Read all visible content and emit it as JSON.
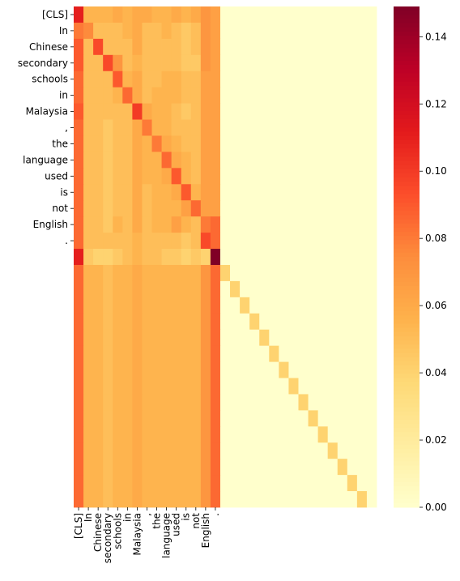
{
  "chart_data": {
    "type": "heatmap",
    "title": "",
    "xlabel": "",
    "ylabel": "",
    "x_tick_labels": [
      "[CLS]",
      "In",
      "Chinese",
      "secondary",
      "schools",
      "in",
      "Malaysia",
      ",",
      "the",
      "language",
      "used",
      "is",
      "not",
      "English",
      "."
    ],
    "y_tick_labels": [
      "[CLS]",
      "In",
      "Chinese",
      "secondary",
      "schools",
      "in",
      "Malaysia",
      ",",
      "the",
      "language",
      "used",
      "is",
      "not",
      "English",
      "."
    ],
    "n_rows": 31,
    "n_cols": 31,
    "colormap": "YlOrRd",
    "colorbar": {
      "min": 0.0,
      "max": 0.149,
      "ticks": [
        0.0,
        0.02,
        0.04,
        0.06,
        0.08,
        0.1,
        0.12,
        0.14
      ],
      "tick_labels": [
        "0.00",
        "0.02",
        "0.04",
        "0.06",
        "0.08",
        "0.10",
        "0.12",
        "0.14"
      ]
    },
    "values": [
      [
        0.11,
        0.055,
        0.055,
        0.055,
        0.06,
        0.055,
        0.06,
        0.06,
        0.055,
        0.055,
        0.06,
        0.055,
        0.06,
        0.07,
        0.065,
        0.0,
        0.0,
        0.0,
        0.0,
        0.0,
        0.0,
        0.0,
        0.0,
        0.0,
        0.0,
        0.0,
        0.0,
        0.0,
        0.0,
        0.0,
        0.0
      ],
      [
        0.08,
        0.075,
        0.05,
        0.05,
        0.05,
        0.055,
        0.06,
        0.05,
        0.05,
        0.055,
        0.05,
        0.045,
        0.05,
        0.07,
        0.065,
        0.0,
        0.0,
        0.0,
        0.0,
        0.0,
        0.0,
        0.0,
        0.0,
        0.0,
        0.0,
        0.0,
        0.0,
        0.0,
        0.0,
        0.0,
        0.0
      ],
      [
        0.09,
        0.05,
        0.095,
        0.05,
        0.05,
        0.05,
        0.06,
        0.05,
        0.05,
        0.05,
        0.05,
        0.045,
        0.05,
        0.07,
        0.065,
        0.0,
        0.0,
        0.0,
        0.0,
        0.0,
        0.0,
        0.0,
        0.0,
        0.0,
        0.0,
        0.0,
        0.0,
        0.0,
        0.0,
        0.0,
        0.0
      ],
      [
        0.09,
        0.05,
        0.05,
        0.095,
        0.07,
        0.05,
        0.055,
        0.05,
        0.05,
        0.05,
        0.05,
        0.045,
        0.045,
        0.07,
        0.065,
        0.0,
        0.0,
        0.0,
        0.0,
        0.0,
        0.0,
        0.0,
        0.0,
        0.0,
        0.0,
        0.0,
        0.0,
        0.0,
        0.0,
        0.0,
        0.0
      ],
      [
        0.085,
        0.05,
        0.05,
        0.05,
        0.09,
        0.055,
        0.06,
        0.05,
        0.05,
        0.055,
        0.055,
        0.05,
        0.05,
        0.065,
        0.065,
        0.0,
        0.0,
        0.0,
        0.0,
        0.0,
        0.0,
        0.0,
        0.0,
        0.0,
        0.0,
        0.0,
        0.0,
        0.0,
        0.0,
        0.0,
        0.0
      ],
      [
        0.085,
        0.05,
        0.05,
        0.05,
        0.055,
        0.085,
        0.06,
        0.05,
        0.055,
        0.055,
        0.055,
        0.05,
        0.05,
        0.065,
        0.065,
        0.0,
        0.0,
        0.0,
        0.0,
        0.0,
        0.0,
        0.0,
        0.0,
        0.0,
        0.0,
        0.0,
        0.0,
        0.0,
        0.0,
        0.0,
        0.0
      ],
      [
        0.09,
        0.05,
        0.05,
        0.05,
        0.05,
        0.05,
        0.1,
        0.06,
        0.055,
        0.055,
        0.05,
        0.045,
        0.05,
        0.065,
        0.065,
        0.0,
        0.0,
        0.0,
        0.0,
        0.0,
        0.0,
        0.0,
        0.0,
        0.0,
        0.0,
        0.0,
        0.0,
        0.0,
        0.0,
        0.0,
        0.0
      ],
      [
        0.085,
        0.05,
        0.05,
        0.045,
        0.05,
        0.05,
        0.06,
        0.08,
        0.055,
        0.055,
        0.05,
        0.05,
        0.05,
        0.065,
        0.065,
        0.0,
        0.0,
        0.0,
        0.0,
        0.0,
        0.0,
        0.0,
        0.0,
        0.0,
        0.0,
        0.0,
        0.0,
        0.0,
        0.0,
        0.0,
        0.0
      ],
      [
        0.085,
        0.05,
        0.05,
        0.045,
        0.05,
        0.05,
        0.06,
        0.055,
        0.08,
        0.06,
        0.055,
        0.05,
        0.05,
        0.065,
        0.065,
        0.0,
        0.0,
        0.0,
        0.0,
        0.0,
        0.0,
        0.0,
        0.0,
        0.0,
        0.0,
        0.0,
        0.0,
        0.0,
        0.0,
        0.0,
        0.0
      ],
      [
        0.085,
        0.05,
        0.05,
        0.045,
        0.05,
        0.05,
        0.06,
        0.055,
        0.055,
        0.085,
        0.06,
        0.055,
        0.05,
        0.065,
        0.065,
        0.0,
        0.0,
        0.0,
        0.0,
        0.0,
        0.0,
        0.0,
        0.0,
        0.0,
        0.0,
        0.0,
        0.0,
        0.0,
        0.0,
        0.0,
        0.0
      ],
      [
        0.085,
        0.05,
        0.05,
        0.045,
        0.05,
        0.05,
        0.06,
        0.055,
        0.055,
        0.06,
        0.09,
        0.055,
        0.05,
        0.065,
        0.065,
        0.0,
        0.0,
        0.0,
        0.0,
        0.0,
        0.0,
        0.0,
        0.0,
        0.0,
        0.0,
        0.0,
        0.0,
        0.0,
        0.0,
        0.0,
        0.0
      ],
      [
        0.085,
        0.05,
        0.05,
        0.045,
        0.05,
        0.05,
        0.06,
        0.05,
        0.055,
        0.055,
        0.06,
        0.09,
        0.055,
        0.065,
        0.065,
        0.0,
        0.0,
        0.0,
        0.0,
        0.0,
        0.0,
        0.0,
        0.0,
        0.0,
        0.0,
        0.0,
        0.0,
        0.0,
        0.0,
        0.0,
        0.0
      ],
      [
        0.085,
        0.05,
        0.05,
        0.045,
        0.05,
        0.05,
        0.06,
        0.05,
        0.055,
        0.055,
        0.055,
        0.065,
        0.085,
        0.065,
        0.065,
        0.0,
        0.0,
        0.0,
        0.0,
        0.0,
        0.0,
        0.0,
        0.0,
        0.0,
        0.0,
        0.0,
        0.0,
        0.0,
        0.0,
        0.0,
        0.0
      ],
      [
        0.085,
        0.05,
        0.05,
        0.045,
        0.055,
        0.05,
        0.06,
        0.05,
        0.055,
        0.055,
        0.065,
        0.055,
        0.05,
        0.08,
        0.085,
        0.0,
        0.0,
        0.0,
        0.0,
        0.0,
        0.0,
        0.0,
        0.0,
        0.0,
        0.0,
        0.0,
        0.0,
        0.0,
        0.0,
        0.0,
        0.0
      ],
      [
        0.085,
        0.05,
        0.05,
        0.05,
        0.05,
        0.05,
        0.055,
        0.05,
        0.05,
        0.05,
        0.05,
        0.045,
        0.05,
        0.095,
        0.085,
        0.0,
        0.0,
        0.0,
        0.0,
        0.0,
        0.0,
        0.0,
        0.0,
        0.0,
        0.0,
        0.0,
        0.0,
        0.0,
        0.0,
        0.0,
        0.0
      ],
      [
        0.11,
        0.045,
        0.04,
        0.04,
        0.045,
        0.05,
        0.055,
        0.05,
        0.05,
        0.045,
        0.045,
        0.04,
        0.045,
        0.04,
        0.149,
        0.0,
        0.0,
        0.0,
        0.0,
        0.0,
        0.0,
        0.0,
        0.0,
        0.0,
        0.0,
        0.0,
        0.0,
        0.0,
        0.0,
        0.0,
        0.0
      ],
      [
        0.085,
        0.055,
        0.055,
        0.05,
        0.055,
        0.055,
        0.06,
        0.055,
        0.055,
        0.055,
        0.055,
        0.055,
        0.055,
        0.07,
        0.085,
        0.04,
        0.0,
        0.0,
        0.0,
        0.0,
        0.0,
        0.0,
        0.0,
        0.0,
        0.0,
        0.0,
        0.0,
        0.0,
        0.0,
        0.0,
        0.0
      ],
      [
        0.085,
        0.055,
        0.055,
        0.05,
        0.055,
        0.055,
        0.06,
        0.055,
        0.055,
        0.055,
        0.055,
        0.055,
        0.055,
        0.07,
        0.085,
        0.0,
        0.04,
        0.0,
        0.0,
        0.0,
        0.0,
        0.0,
        0.0,
        0.0,
        0.0,
        0.0,
        0.0,
        0.0,
        0.0,
        0.0,
        0.0
      ],
      [
        0.085,
        0.055,
        0.055,
        0.05,
        0.055,
        0.055,
        0.06,
        0.055,
        0.055,
        0.055,
        0.055,
        0.055,
        0.055,
        0.07,
        0.085,
        0.0,
        0.0,
        0.04,
        0.0,
        0.0,
        0.0,
        0.0,
        0.0,
        0.0,
        0.0,
        0.0,
        0.0,
        0.0,
        0.0,
        0.0,
        0.0
      ],
      [
        0.085,
        0.055,
        0.055,
        0.05,
        0.055,
        0.055,
        0.06,
        0.055,
        0.055,
        0.055,
        0.055,
        0.055,
        0.055,
        0.07,
        0.085,
        0.0,
        0.0,
        0.0,
        0.04,
        0.0,
        0.0,
        0.0,
        0.0,
        0.0,
        0.0,
        0.0,
        0.0,
        0.0,
        0.0,
        0.0,
        0.0
      ],
      [
        0.085,
        0.055,
        0.055,
        0.05,
        0.055,
        0.055,
        0.06,
        0.055,
        0.055,
        0.055,
        0.055,
        0.055,
        0.055,
        0.07,
        0.085,
        0.0,
        0.0,
        0.0,
        0.0,
        0.04,
        0.0,
        0.0,
        0.0,
        0.0,
        0.0,
        0.0,
        0.0,
        0.0,
        0.0,
        0.0,
        0.0
      ],
      [
        0.085,
        0.055,
        0.055,
        0.05,
        0.055,
        0.055,
        0.06,
        0.055,
        0.055,
        0.055,
        0.055,
        0.055,
        0.055,
        0.07,
        0.085,
        0.0,
        0.0,
        0.0,
        0.0,
        0.0,
        0.04,
        0.0,
        0.0,
        0.0,
        0.0,
        0.0,
        0.0,
        0.0,
        0.0,
        0.0,
        0.0
      ],
      [
        0.085,
        0.055,
        0.055,
        0.05,
        0.055,
        0.055,
        0.06,
        0.055,
        0.055,
        0.055,
        0.055,
        0.055,
        0.055,
        0.07,
        0.085,
        0.0,
        0.0,
        0.0,
        0.0,
        0.0,
        0.0,
        0.04,
        0.0,
        0.0,
        0.0,
        0.0,
        0.0,
        0.0,
        0.0,
        0.0,
        0.0
      ],
      [
        0.085,
        0.055,
        0.055,
        0.05,
        0.055,
        0.055,
        0.06,
        0.055,
        0.055,
        0.055,
        0.055,
        0.055,
        0.055,
        0.07,
        0.085,
        0.0,
        0.0,
        0.0,
        0.0,
        0.0,
        0.0,
        0.0,
        0.04,
        0.0,
        0.0,
        0.0,
        0.0,
        0.0,
        0.0,
        0.0,
        0.0
      ],
      [
        0.085,
        0.055,
        0.055,
        0.05,
        0.055,
        0.055,
        0.06,
        0.055,
        0.055,
        0.055,
        0.055,
        0.055,
        0.055,
        0.07,
        0.085,
        0.0,
        0.0,
        0.0,
        0.0,
        0.0,
        0.0,
        0.0,
        0.0,
        0.04,
        0.0,
        0.0,
        0.0,
        0.0,
        0.0,
        0.0,
        0.0
      ],
      [
        0.085,
        0.055,
        0.055,
        0.05,
        0.055,
        0.055,
        0.06,
        0.055,
        0.055,
        0.055,
        0.055,
        0.055,
        0.055,
        0.07,
        0.085,
        0.0,
        0.0,
        0.0,
        0.0,
        0.0,
        0.0,
        0.0,
        0.0,
        0.0,
        0.04,
        0.0,
        0.0,
        0.0,
        0.0,
        0.0,
        0.0
      ],
      [
        0.085,
        0.055,
        0.055,
        0.05,
        0.055,
        0.055,
        0.06,
        0.055,
        0.055,
        0.055,
        0.055,
        0.055,
        0.055,
        0.07,
        0.085,
        0.0,
        0.0,
        0.0,
        0.0,
        0.0,
        0.0,
        0.0,
        0.0,
        0.0,
        0.0,
        0.04,
        0.0,
        0.0,
        0.0,
        0.0,
        0.0
      ],
      [
        0.085,
        0.055,
        0.055,
        0.05,
        0.055,
        0.055,
        0.06,
        0.055,
        0.055,
        0.055,
        0.055,
        0.055,
        0.055,
        0.07,
        0.085,
        0.0,
        0.0,
        0.0,
        0.0,
        0.0,
        0.0,
        0.0,
        0.0,
        0.0,
        0.0,
        0.0,
        0.04,
        0.0,
        0.0,
        0.0,
        0.0
      ],
      [
        0.085,
        0.055,
        0.055,
        0.05,
        0.055,
        0.055,
        0.06,
        0.055,
        0.055,
        0.055,
        0.055,
        0.055,
        0.055,
        0.07,
        0.085,
        0.0,
        0.0,
        0.0,
        0.0,
        0.0,
        0.0,
        0.0,
        0.0,
        0.0,
        0.0,
        0.0,
        0.0,
        0.04,
        0.0,
        0.0,
        0.0
      ],
      [
        0.085,
        0.055,
        0.055,
        0.05,
        0.055,
        0.055,
        0.06,
        0.055,
        0.055,
        0.055,
        0.055,
        0.055,
        0.055,
        0.07,
        0.085,
        0.0,
        0.0,
        0.0,
        0.0,
        0.0,
        0.0,
        0.0,
        0.0,
        0.0,
        0.0,
        0.0,
        0.0,
        0.0,
        0.04,
        0.0,
        0.0
      ],
      [
        0.085,
        0.055,
        0.055,
        0.05,
        0.055,
        0.055,
        0.06,
        0.055,
        0.055,
        0.055,
        0.055,
        0.055,
        0.055,
        0.07,
        0.085,
        0.0,
        0.0,
        0.0,
        0.0,
        0.0,
        0.0,
        0.0,
        0.0,
        0.0,
        0.0,
        0.0,
        0.0,
        0.0,
        0.0,
        0.04,
        0.0
      ]
    ]
  }
}
